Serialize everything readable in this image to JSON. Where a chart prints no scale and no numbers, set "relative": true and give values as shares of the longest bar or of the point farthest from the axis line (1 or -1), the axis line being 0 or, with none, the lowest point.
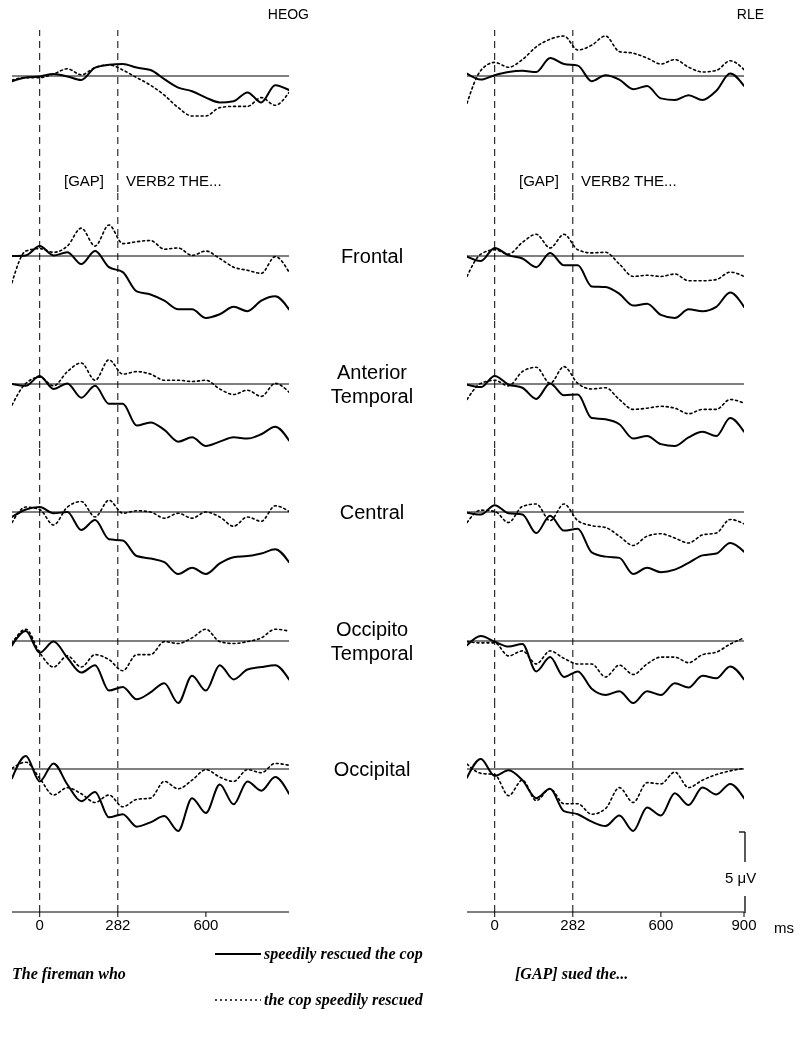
{
  "chart_data": [
    {
      "type": "line",
      "title": "HEOG",
      "relative": true,
      "xlim": [
        -100,
        900
      ],
      "tick_labels": false,
      "annotations": [
        "[GAP]",
        "VERB2 THE..."
      ],
      "ref_lines": [
        {
          "axis": "x",
          "value": 0,
          "line_style": "dashed"
        },
        {
          "axis": "x",
          "value": 282,
          "line_style": "dashed"
        }
      ],
      "x": [
        -100,
        -50,
        0,
        50,
        100,
        150,
        200,
        250,
        300,
        350,
        400,
        450,
        500,
        550,
        600,
        650,
        700,
        750,
        800,
        850,
        900
      ],
      "series": [
        {
          "color": "#000000",
          "line_style": "solid",
          "values": [
            -0.13,
            -0.04,
            -0.01,
            0.05,
            -0.01,
            -0.1,
            0.21,
            0.28,
            0.3,
            0.21,
            0.15,
            -0.08,
            -0.29,
            -0.38,
            -0.54,
            -0.66,
            -0.63,
            -0.41,
            -0.66,
            -0.23,
            -0.35
          ]
        },
        {
          "color": "#000000",
          "line_style": "dotted",
          "values": [
            -0.1,
            -0.04,
            -0.04,
            0.05,
            0.18,
            0.03,
            0.21,
            0.28,
            0.15,
            -0.04,
            -0.23,
            -0.48,
            -0.79,
            -1,
            -1,
            -0.79,
            -0.76,
            -0.76,
            -0.54,
            -0.73,
            -0.41
          ]
        }
      ]
    },
    {
      "type": "line",
      "title": "RLE",
      "relative": true,
      "xlim": [
        -100,
        900
      ],
      "tick_labels": false,
      "annotations": [
        "[GAP]",
        "VERB2 THE..."
      ],
      "ref_lines": [
        {
          "axis": "x",
          "value": 0,
          "line_style": "dashed"
        },
        {
          "axis": "x",
          "value": 282,
          "line_style": "dashed"
        }
      ],
      "x": [
        -100,
        -50,
        0,
        50,
        100,
        150,
        200,
        250,
        300,
        350,
        400,
        450,
        500,
        550,
        600,
        650,
        700,
        750,
        800,
        850,
        900
      ],
      "series": [
        {
          "color": "#000000",
          "line_style": "solid",
          "values": [
            0.06,
            -0.09,
            0.02,
            0.1,
            0.13,
            0.1,
            0.45,
            0.3,
            0.26,
            -0.13,
            0.02,
            -0.09,
            -0.33,
            -0.25,
            -0.56,
            -0.6,
            -0.48,
            -0.6,
            -0.37,
            0.06,
            -0.25
          ]
        },
        {
          "color": "#000000",
          "line_style": "dotted",
          "values": [
            -0.68,
            0.14,
            0.34,
            0.22,
            0.41,
            0.73,
            0.92,
            1,
            0.65,
            0.77,
            1,
            0.61,
            0.57,
            0.45,
            0.3,
            0.41,
            0.22,
            0.1,
            0.14,
            0.38,
            0.16
          ]
        }
      ]
    },
    {
      "type": "line",
      "relative": true,
      "xlim": [
        -100,
        900
      ],
      "tick_labels": false,
      "ref_lines": [
        {
          "axis": "x",
          "value": 0,
          "line_style": "dashed"
        },
        {
          "axis": "x",
          "value": 282,
          "line_style": "dashed"
        }
      ],
      "x": [
        -100,
        -50,
        0,
        50,
        100,
        150,
        200,
        250,
        300,
        350,
        400,
        450,
        500,
        550,
        600,
        650,
        700,
        750,
        800,
        850,
        900
      ],
      "series": [
        {
          "color": "#000000",
          "line_style": "solid",
          "values": [
            0,
            0.01,
            0.16,
            0.01,
            0.06,
            -0.13,
            0.08,
            -0.18,
            -0.26,
            -0.57,
            -0.62,
            -0.72,
            -0.86,
            -0.86,
            -1,
            -0.94,
            -0.82,
            -0.89,
            -0.72,
            -0.65,
            -0.86
          ]
        },
        {
          "color": "#000000",
          "line_style": "dotted",
          "values": [
            -0.43,
            0.08,
            0.12,
            0.06,
            0.16,
            0.45,
            0.16,
            0.5,
            0.2,
            0.23,
            0.25,
            0.11,
            0.13,
            0.01,
            0.08,
            -0.04,
            -0.18,
            -0.23,
            -0.28,
            -0.01,
            -0.26
          ]
        }
      ]
    },
    {
      "type": "line",
      "title": "Frontal",
      "relative": true,
      "xlim": [
        -100,
        900
      ],
      "tick_labels": false,
      "ref_lines": [
        {
          "axis": "x",
          "value": 0,
          "line_style": "dashed"
        },
        {
          "axis": "x",
          "value": 282,
          "line_style": "dashed"
        }
      ],
      "x": [
        -100,
        -50,
        0,
        50,
        100,
        150,
        200,
        250,
        300,
        350,
        400,
        450,
        500,
        550,
        600,
        650,
        700,
        750,
        800,
        850,
        900
      ],
      "series": [
        {
          "color": "#000000",
          "line_style": "solid",
          "values": [
            -0.01,
            -0.08,
            0.13,
            0.01,
            -0.04,
            -0.18,
            0.05,
            -0.15,
            -0.15,
            -0.49,
            -0.5,
            -0.61,
            -0.8,
            -0.77,
            -0.95,
            -1,
            -0.86,
            -0.89,
            -0.82,
            -0.59,
            -0.82
          ]
        },
        {
          "color": "#000000",
          "line_style": "dotted",
          "values": [
            -0.33,
            0.03,
            0.1,
            0.03,
            0.22,
            0.35,
            0.13,
            0.35,
            0.1,
            0.05,
            0.06,
            -0.13,
            -0.33,
            -0.31,
            -0.33,
            -0.29,
            -0.4,
            -0.4,
            -0.38,
            -0.26,
            -0.33
          ]
        }
      ]
    },
    {
      "type": "line",
      "relative": true,
      "xlim": [
        -100,
        900
      ],
      "tick_labels": false,
      "ref_lines": [
        {
          "axis": "x",
          "value": 0,
          "line_style": "dashed"
        },
        {
          "axis": "x",
          "value": 282,
          "line_style": "dashed"
        }
      ],
      "x": [
        -100,
        -50,
        0,
        50,
        100,
        150,
        200,
        250,
        300,
        350,
        400,
        450,
        500,
        550,
        600,
        650,
        700,
        750,
        800,
        850,
        900
      ],
      "series": [
        {
          "color": "#000000",
          "line_style": "solid",
          "values": [
            0,
            -0.03,
            0.13,
            -0.08,
            0.01,
            -0.22,
            -0.03,
            -0.32,
            -0.32,
            -0.67,
            -0.62,
            -0.74,
            -0.93,
            -0.86,
            -1,
            -0.93,
            -0.86,
            -0.88,
            -0.81,
            -0.69,
            -0.91
          ]
        },
        {
          "color": "#000000",
          "line_style": "dotted",
          "values": [
            -0.34,
            0.01,
            0.11,
            -0.03,
            0.2,
            0.34,
            0.06,
            0.39,
            0.16,
            0.2,
            0.16,
            0.06,
            0.06,
            0.04,
            0.06,
            -0.08,
            -0.17,
            -0.1,
            -0.2,
            0.01,
            -0.13
          ]
        }
      ]
    },
    {
      "type": "line",
      "title": "Anterior Temporal",
      "relative": true,
      "xlim": [
        -100,
        900
      ],
      "tick_labels": false,
      "ref_lines": [
        {
          "axis": "x",
          "value": 0,
          "line_style": "dashed"
        },
        {
          "axis": "x",
          "value": 282,
          "line_style": "dashed"
        }
      ],
      "x": [
        -100,
        -50,
        0,
        50,
        100,
        150,
        200,
        250,
        300,
        350,
        400,
        450,
        500,
        550,
        600,
        650,
        700,
        750,
        800,
        850,
        900
      ],
      "series": [
        {
          "color": "#000000",
          "line_style": "solid",
          "values": [
            -0.01,
            -0.05,
            0.13,
            -0.01,
            -0.06,
            -0.24,
            0.01,
            -0.18,
            -0.17,
            -0.55,
            -0.57,
            -0.65,
            -0.88,
            -0.84,
            -0.97,
            -1,
            -0.86,
            -0.77,
            -0.84,
            -0.55,
            -0.77
          ]
        },
        {
          "color": "#000000",
          "line_style": "dotted",
          "values": [
            -0.25,
            0.01,
            0.06,
            -0.03,
            0.2,
            0.27,
            0.01,
            0.28,
            0.01,
            -0.08,
            -0.06,
            -0.25,
            -0.41,
            -0.39,
            -0.36,
            -0.39,
            -0.48,
            -0.41,
            -0.41,
            -0.25,
            -0.31
          ]
        }
      ]
    },
    {
      "type": "line",
      "relative": true,
      "xlim": [
        -100,
        900
      ],
      "tick_labels": false,
      "ref_lines": [
        {
          "axis": "x",
          "value": 0,
          "line_style": "dashed"
        },
        {
          "axis": "x",
          "value": 282,
          "line_style": "dashed"
        }
      ],
      "x": [
        -100,
        -50,
        0,
        50,
        100,
        150,
        200,
        250,
        300,
        350,
        400,
        450,
        500,
        550,
        600,
        650,
        700,
        750,
        800,
        850,
        900
      ],
      "series": [
        {
          "color": "#000000",
          "line_style": "solid",
          "values": [
            -0.08,
            0.04,
            0.08,
            -0.02,
            0,
            -0.29,
            -0.13,
            -0.44,
            -0.46,
            -0.71,
            -0.75,
            -0.81,
            -1,
            -0.9,
            -1,
            -0.83,
            -0.73,
            -0.71,
            -0.67,
            -0.6,
            -0.81
          ]
        },
        {
          "color": "#000000",
          "line_style": "dotted",
          "values": [
            -0.17,
            0.08,
            0.04,
            -0.21,
            0.08,
            0.17,
            -0.08,
            0.19,
            -0.02,
            0.02,
            0,
            -0.1,
            -0.02,
            -0.1,
            0,
            -0.08,
            -0.23,
            -0.08,
            -0.15,
            0.1,
            0.01
          ]
        }
      ]
    },
    {
      "type": "line",
      "title": "Central",
      "relative": true,
      "xlim": [
        -100,
        900
      ],
      "tick_labels": false,
      "ref_lines": [
        {
          "axis": "x",
          "value": 0,
          "line_style": "dashed"
        },
        {
          "axis": "x",
          "value": 282,
          "line_style": "dashed"
        }
      ],
      "x": [
        -100,
        -50,
        0,
        50,
        100,
        150,
        200,
        250,
        300,
        350,
        400,
        450,
        500,
        550,
        600,
        650,
        700,
        750,
        800,
        850,
        900
      ],
      "series": [
        {
          "color": "#000000",
          "line_style": "solid",
          "values": [
            -0.01,
            -0.04,
            0.11,
            -0.02,
            -0.04,
            -0.34,
            -0.06,
            -0.3,
            -0.27,
            -0.65,
            -0.72,
            -0.74,
            -1,
            -0.9,
            -0.97,
            -0.93,
            -0.82,
            -0.7,
            -0.67,
            -0.5,
            -0.64
          ]
        },
        {
          "color": "#000000",
          "line_style": "dotted",
          "values": [
            -0.17,
            0.03,
            0.01,
            -0.17,
            0.09,
            0.13,
            -0.14,
            0.13,
            -0.14,
            -0.22,
            -0.25,
            -0.39,
            -0.54,
            -0.39,
            -0.35,
            -0.42,
            -0.5,
            -0.37,
            -0.34,
            -0.12,
            -0.19
          ]
        }
      ]
    },
    {
      "type": "line",
      "relative": true,
      "xlim": [
        -100,
        900
      ],
      "tick_labels": false,
      "ref_lines": [
        {
          "axis": "x",
          "value": 0,
          "line_style": "dashed"
        },
        {
          "axis": "x",
          "value": 282,
          "line_style": "dashed"
        }
      ],
      "x": [
        -100,
        -50,
        0,
        50,
        100,
        150,
        200,
        250,
        300,
        350,
        400,
        450,
        500,
        550,
        600,
        650,
        700,
        750,
        800,
        850,
        900
      ],
      "series": [
        {
          "color": "#000000",
          "line_style": "solid",
          "values": [
            -0.07,
            0.16,
            -0.19,
            -0.01,
            -0.27,
            -0.51,
            -0.39,
            -0.8,
            -0.74,
            -0.94,
            -0.83,
            -0.68,
            -1,
            -0.56,
            -0.8,
            -0.39,
            -0.62,
            -0.46,
            -0.42,
            -0.39,
            -0.62
          ]
        },
        {
          "color": "#000000",
          "line_style": "dotted",
          "values": [
            -0.04,
            0.19,
            -0.19,
            -0.42,
            -0.24,
            -0.42,
            -0.22,
            -0.3,
            -0.48,
            -0.22,
            -0.22,
            -0.01,
            -0.04,
            0.05,
            0.19,
            -0.01,
            -0.04,
            -0.01,
            0.05,
            0.19,
            0.16
          ]
        }
      ]
    },
    {
      "type": "line",
      "title": "Occipito Temporal",
      "relative": true,
      "xlim": [
        -100,
        900
      ],
      "tick_labels": false,
      "ref_lines": [
        {
          "axis": "x",
          "value": 0,
          "line_style": "dashed"
        },
        {
          "axis": "x",
          "value": 282,
          "line_style": "dashed"
        }
      ],
      "x": [
        -100,
        -50,
        0,
        50,
        100,
        150,
        200,
        250,
        300,
        350,
        400,
        450,
        500,
        550,
        600,
        650,
        700,
        750,
        800,
        850,
        900
      ],
      "series": [
        {
          "color": "#000000",
          "line_style": "solid",
          "values": [
            -0.07,
            0.08,
            -0.01,
            -0.09,
            -0.05,
            -0.49,
            -0.26,
            -0.58,
            -0.49,
            -0.77,
            -0.87,
            -0.81,
            -1,
            -0.81,
            -0.87,
            -0.68,
            -0.75,
            -0.56,
            -0.6,
            -0.41,
            -0.62
          ]
        },
        {
          "color": "#000000",
          "line_style": "dotted",
          "values": [
            -0.01,
            -0.03,
            -0.03,
            -0.24,
            -0.16,
            -0.37,
            -0.16,
            -0.28,
            -0.37,
            -0.37,
            -0.58,
            -0.39,
            -0.54,
            -0.37,
            -0.26,
            -0.26,
            -0.35,
            -0.22,
            -0.18,
            -0.05,
            0.05
          ]
        }
      ]
    },
    {
      "type": "line",
      "relative": true,
      "xlim": [
        -100,
        900
      ],
      "xticks": [
        0,
        282,
        600
      ],
      "tick_labels": "x",
      "ref_lines": [
        {
          "axis": "x",
          "value": 0,
          "line_style": "dashed"
        },
        {
          "axis": "x",
          "value": 282,
          "line_style": "dashed"
        }
      ],
      "x": [
        -100,
        -50,
        0,
        50,
        100,
        150,
        200,
        250,
        300,
        350,
        400,
        450,
        500,
        550,
        600,
        650,
        700,
        750,
        800,
        850,
        900
      ],
      "series": [
        {
          "color": "#000000",
          "line_style": "solid",
          "values": [
            -0.15,
            0.21,
            -0.2,
            0.09,
            -0.25,
            -0.52,
            -0.37,
            -0.78,
            -0.73,
            -0.93,
            -0.86,
            -0.76,
            -1,
            -0.47,
            -0.71,
            -0.25,
            -0.57,
            -0.2,
            -0.35,
            -0.13,
            -0.4
          ]
        },
        {
          "color": "#000000",
          "line_style": "dotted",
          "values": [
            0.01,
            0.11,
            -0.15,
            -0.42,
            -0.3,
            -0.4,
            -0.54,
            -0.42,
            -0.61,
            -0.49,
            -0.47,
            -0.2,
            -0.32,
            -0.18,
            -0.01,
            -0.13,
            -0.2,
            -0.01,
            -0.06,
            0.09,
            0.06
          ]
        }
      ]
    },
    {
      "type": "line",
      "title": "Occipital",
      "xlabel": "ms",
      "relative": true,
      "xlim": [
        -100,
        900
      ],
      "xticks": [
        0,
        282,
        600,
        900
      ],
      "tick_labels": "x",
      "legend": "bottom",
      "annotations": [
        "5 μV",
        "The fireman who",
        "[GAP] sued the..."
      ],
      "ref_lines": [
        {
          "axis": "x",
          "value": 0,
          "line_style": "dashed"
        },
        {
          "axis": "x",
          "value": 282,
          "line_style": "dashed"
        }
      ],
      "x": [
        -100,
        -50,
        0,
        50,
        100,
        150,
        200,
        250,
        300,
        350,
        400,
        450,
        500,
        550,
        600,
        650,
        700,
        750,
        800,
        850,
        900
      ],
      "series": [
        {
          "name": "speedily rescued the cop",
          "color": "#000000",
          "line_style": "solid",
          "values": [
            -0.14,
            0.16,
            -0.11,
            -0.02,
            -0.18,
            -0.47,
            -0.32,
            -0.68,
            -0.73,
            -0.85,
            -0.92,
            -0.75,
            -1,
            -0.62,
            -0.75,
            -0.39,
            -0.58,
            -0.3,
            -0.41,
            -0.24,
            -0.47
          ]
        },
        {
          "name": "the cop speedily rescued",
          "color": "#000000",
          "line_style": "dotted",
          "values": [
            0.08,
            -0.07,
            -0.09,
            -0.43,
            -0.18,
            -0.51,
            -0.32,
            -0.56,
            -0.56,
            -0.73,
            -0.64,
            -0.3,
            -0.54,
            -0.22,
            -0.24,
            -0.05,
            -0.3,
            -0.18,
            -0.09,
            -0.03,
            0.01
          ]
        }
      ]
    }
  ]
}
